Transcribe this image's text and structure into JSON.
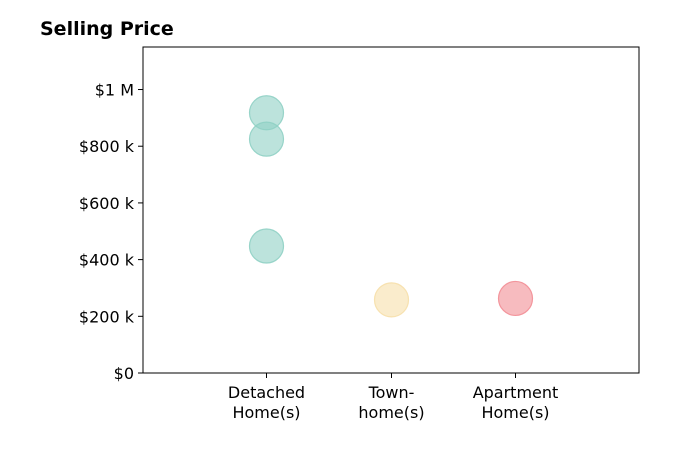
{
  "chart_data": {
    "type": "scatter",
    "title": "Selling Price",
    "xlabel": "",
    "ylabel": "",
    "categories": [
      [
        "Detached",
        "Home(s)"
      ],
      [
        "Town-",
        "home(s)"
      ],
      [
        "Apartment",
        "Home(s)"
      ]
    ],
    "ylim": [
      0,
      1150000
    ],
    "yticks": [
      0,
      200000,
      400000,
      600000,
      800000,
      1000000
    ],
    "ytick_labels": [
      "$0",
      "$200 k",
      "$400 k",
      "$600 k",
      "$800 k",
      "$1 M"
    ],
    "grid": false,
    "legend": "none",
    "points": [
      {
        "category": 0,
        "value": 918000,
        "color": "#8fd0c4"
      },
      {
        "category": 0,
        "value": 825000,
        "color": "#8fd0c4"
      },
      {
        "category": 0,
        "value": 448000,
        "color": "#8fd0c4"
      },
      {
        "category": 1,
        "value": 258000,
        "color": "#f6dfaa"
      },
      {
        "category": 2,
        "value": 263000,
        "color": "#f28d95"
      }
    ]
  }
}
